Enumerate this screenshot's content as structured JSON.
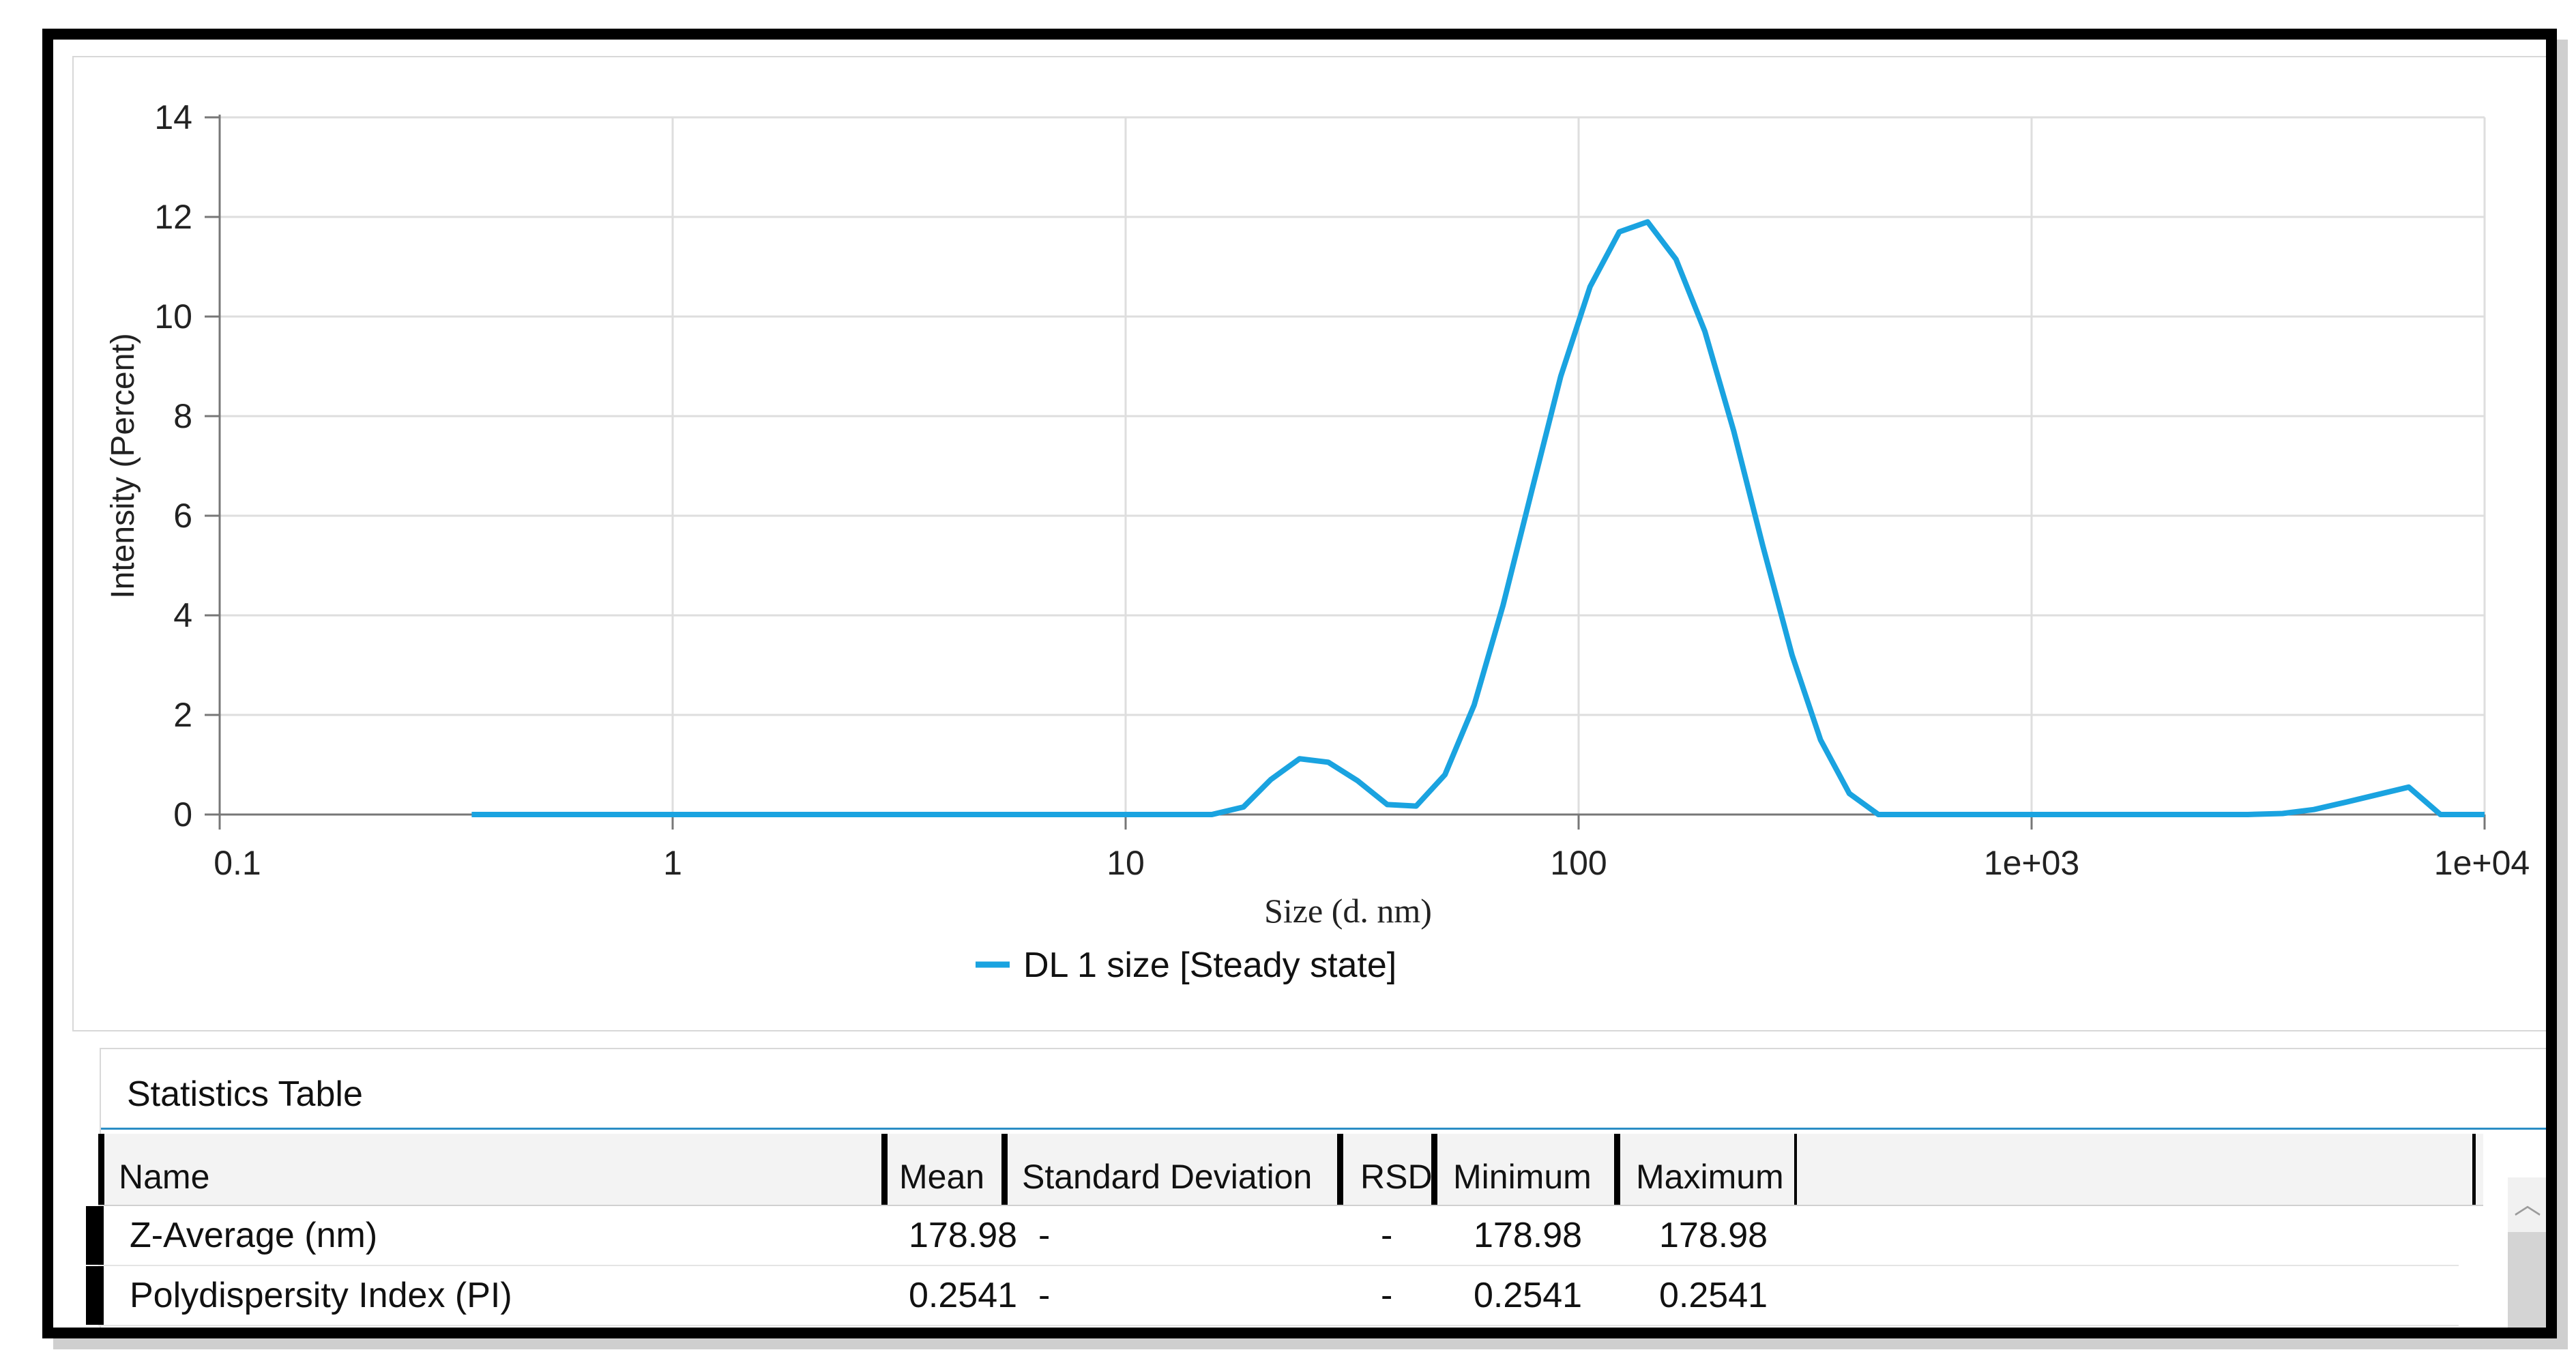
{
  "chart_data": {
    "type": "line",
    "ylabel": "Intensity (Percent)",
    "xlabel": "Size (d. nm)",
    "xscale": "log",
    "xlim": [
      0.1,
      10000
    ],
    "ylim": [
      0,
      14
    ],
    "xticks": [
      {
        "value": 0.1,
        "label": "0.1"
      },
      {
        "value": 1,
        "label": "1"
      },
      {
        "value": 10,
        "label": "10"
      },
      {
        "value": 100,
        "label": "100"
      },
      {
        "value": 1000,
        "label": "1e+03"
      },
      {
        "value": 10000,
        "label": "1e+04"
      }
    ],
    "yticks": [
      {
        "value": 0,
        "label": "0"
      },
      {
        "value": 2,
        "label": "2"
      },
      {
        "value": 4,
        "label": "4"
      },
      {
        "value": 6,
        "label": "6"
      },
      {
        "value": 8,
        "label": "8"
      },
      {
        "value": 10,
        "label": "10"
      },
      {
        "value": 12,
        "label": "12"
      },
      {
        "value": 14,
        "label": "14"
      }
    ],
    "grid": true,
    "legend_position": "bottom",
    "series": [
      {
        "name": "DL 1 size [Steady state]",
        "color": "#1aa3e0",
        "points": [
          [
            0.36,
            0
          ],
          [
            1,
            0
          ],
          [
            10,
            0
          ],
          [
            15.5,
            0
          ],
          [
            18.2,
            0.15
          ],
          [
            20.9,
            0.7
          ],
          [
            24.2,
            1.12
          ],
          [
            28,
            1.05
          ],
          [
            32.5,
            0.68
          ],
          [
            37.8,
            0.2
          ],
          [
            43.8,
            0.17
          ],
          [
            50.7,
            0.8
          ],
          [
            58.8,
            2.2
          ],
          [
            68.1,
            4.2
          ],
          [
            78.8,
            6.5
          ],
          [
            91.3,
            8.8
          ],
          [
            106,
            10.6
          ],
          [
            123,
            11.7
          ],
          [
            142,
            11.9
          ],
          [
            164,
            11.15
          ],
          [
            190,
            9.7
          ],
          [
            220,
            7.7
          ],
          [
            255,
            5.4
          ],
          [
            296,
            3.2
          ],
          [
            342,
            1.5
          ],
          [
            396,
            0.42
          ],
          [
            459,
            0
          ],
          [
            1000,
            0
          ],
          [
            3000,
            0
          ],
          [
            3580,
            0.02
          ],
          [
            4200,
            0.1
          ],
          [
            4950,
            0.25
          ],
          [
            5800,
            0.4
          ],
          [
            6800,
            0.55
          ],
          [
            7990,
            0
          ],
          [
            10000,
            0
          ]
        ]
      }
    ]
  },
  "stats": {
    "title": "Statistics Table",
    "columns": [
      "Name",
      "Mean",
      "Standard Deviation",
      "RSD",
      "Minimum",
      "Maximum"
    ],
    "rows": [
      {
        "name": "Z-Average (nm)",
        "mean": "178.98",
        "sd": "-",
        "rsd": "-",
        "min": "178.98",
        "max": "178.98"
      },
      {
        "name": "Polydispersity Index (PI)",
        "mean": "0.2541",
        "sd": "-",
        "rsd": "-",
        "min": "0.2541",
        "max": "0.2541"
      }
    ]
  },
  "scroll": {
    "up_icon": "chevron-up-icon",
    "up_glyph": "︿"
  }
}
